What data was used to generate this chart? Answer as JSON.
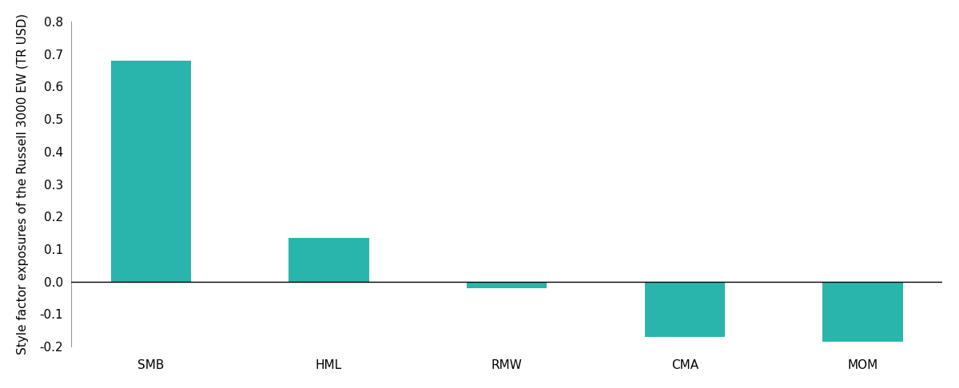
{
  "categories": [
    "SMB",
    "HML",
    "RMW",
    "CMA",
    "MOM"
  ],
  "values": [
    0.68,
    0.135,
    -0.02,
    -0.17,
    -0.185
  ],
  "bar_color": "#2ab5ac",
  "ylabel": "Style factor exposures of the Russell 3000 EW (TR USD)",
  "ylim": [
    -0.2,
    0.8
  ],
  "yticks": [
    -0.2,
    -0.1,
    0.0,
    0.1,
    0.2,
    0.3,
    0.4,
    0.5,
    0.6,
    0.7,
    0.8
  ],
  "ytick_labels": [
    "-0.2",
    "-0.1",
    "0.0",
    "0.1",
    "0.2",
    "0.3",
    "0.4",
    "0.5",
    "0.6",
    "0.7",
    "0.8"
  ],
  "background_color": "#ffffff",
  "bar_width": 0.45,
  "ylabel_fontsize": 11,
  "tick_fontsize": 11
}
